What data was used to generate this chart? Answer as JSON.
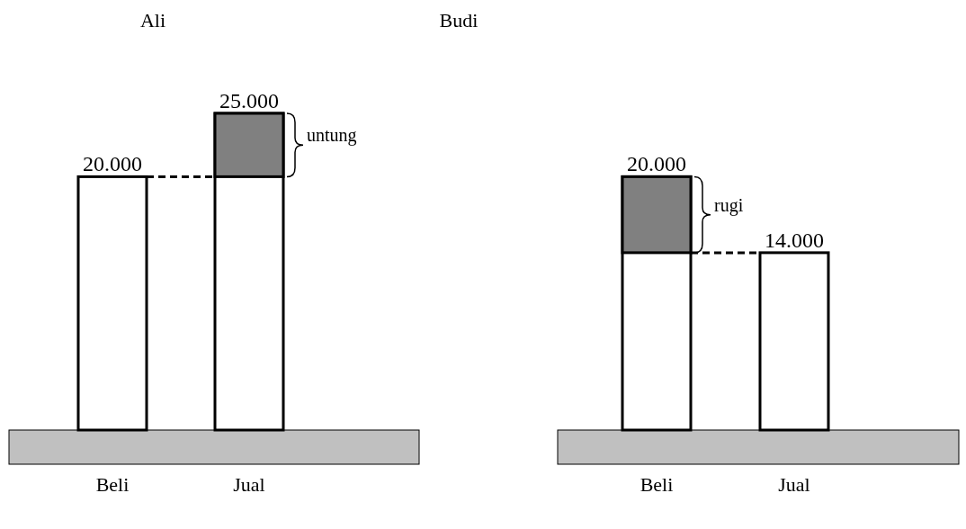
{
  "chart_data": [
    {
      "type": "bar",
      "title": "Ali",
      "categories": [
        "Beli",
        "Jual"
      ],
      "color": "#ffffff",
      "values": [
        20000,
        25000
      ],
      "value_labels": [
        "20.000",
        "25.000"
      ],
      "tick_labels": "x",
      "ref_lines": [
        {
          "axis": "y",
          "value": 20000,
          "line_style": "dashed"
        }
      ],
      "bands": [
        {
          "axis": "y",
          "from": 20000,
          "to": 25000,
          "label": "untung",
          "color": "#808080"
        }
      ]
    },
    {
      "type": "bar",
      "title": "Budi",
      "categories": [
        "Beli",
        "Jual"
      ],
      "color": "#ffffff",
      "values": [
        20000,
        14000
      ],
      "value_labels": [
        "20.000",
        "14.000"
      ],
      "tick_labels": "x",
      "ref_lines": [
        {
          "axis": "y",
          "value": 14000,
          "line_style": "dashed"
        }
      ],
      "bands": [
        {
          "axis": "y",
          "from": 14000,
          "to": 20000,
          "label": "rugi",
          "color": "#808080"
        }
      ]
    }
  ]
}
